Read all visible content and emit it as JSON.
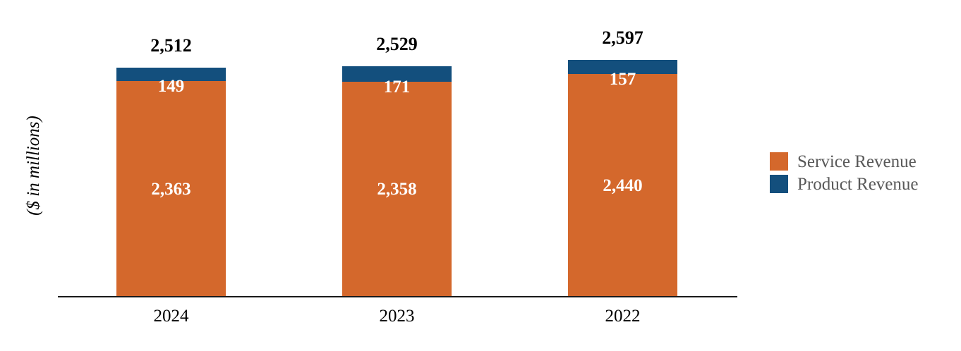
{
  "y_axis_title": "($ in millions)",
  "legend": {
    "position": "right",
    "items": [
      {
        "label": "Service Revenue",
        "color": "#D4682C"
      },
      {
        "label": "Product Revenue",
        "color": "#134F7D"
      }
    ]
  },
  "chart_data": {
    "type": "bar",
    "stacked": true,
    "orientation": "vertical",
    "title": "",
    "xlabel": "",
    "ylabel": "($ in millions)",
    "categories": [
      "2024",
      "2023",
      "2022"
    ],
    "series": [
      {
        "name": "Service Revenue",
        "color": "#D4682C",
        "values": [
          2363,
          2358,
          2440
        ],
        "labels": [
          "2,363",
          "2,358",
          "2,440"
        ]
      },
      {
        "name": "Product Revenue",
        "color": "#134F7D",
        "values": [
          149,
          171,
          157
        ],
        "labels": [
          "149",
          "171",
          "157"
        ]
      }
    ],
    "totals": {
      "values": [
        2512,
        2529,
        2597
      ],
      "labels": [
        "2,512",
        "2,529",
        "2,597"
      ]
    },
    "legend_position": "right",
    "grid": false,
    "y_axis_visible": false,
    "x_baseline_visible": true,
    "value_label_color_inside": "#ffffff",
    "total_label_color": "#000000"
  }
}
